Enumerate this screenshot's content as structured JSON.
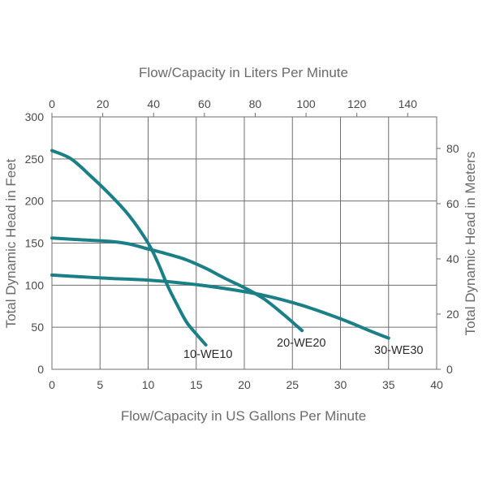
{
  "chart_data": {
    "type": "line",
    "title_top": "Flow/Capacity in Liters Per Minute",
    "xlabel": "Flow/Capacity in US Gallons Per Minute",
    "ylabel_left": "Total Dynamic Head in Feet",
    "ylabel_right": "Total Dynamic Head in Meters",
    "x_range": [
      0,
      40
    ],
    "y_range": [
      0,
      300
    ],
    "x_ticks": [
      "0",
      "5",
      "10",
      "15",
      "20",
      "25",
      "30",
      "35",
      "40"
    ],
    "y_ticks": [
      "0",
      "50",
      "100",
      "150",
      "200",
      "250",
      "300"
    ],
    "top_ticks": [
      "0",
      "20",
      "40",
      "60",
      "80",
      "100",
      "120",
      "140"
    ],
    "right_ticks": [
      "0",
      "20",
      "40",
      "60",
      "80"
    ],
    "grid": true,
    "line_color": "#1a7f86",
    "series": [
      {
        "name": "10-WE10",
        "x": [
          0,
          2,
          4,
          6,
          8,
          10,
          11,
          12,
          13,
          14,
          15,
          16
        ],
        "y": [
          260,
          250,
          230,
          208,
          183,
          150,
          127,
          100,
          77,
          56,
          42,
          29
        ]
      },
      {
        "name": "20-WE20",
        "x": [
          0,
          3,
          6,
          8,
          10,
          12,
          14,
          16,
          18,
          20,
          22,
          24,
          26
        ],
        "y": [
          156,
          154,
          152,
          149,
          143,
          137,
          130,
          120,
          108,
          97,
          84,
          66,
          46
        ]
      },
      {
        "name": "30-WE30",
        "x": [
          0,
          3,
          6,
          10,
          14,
          18,
          22,
          26,
          30,
          33,
          35
        ],
        "y": [
          112,
          110,
          108,
          106,
          102,
          96,
          88,
          76,
          60,
          46,
          37
        ]
      }
    ]
  }
}
